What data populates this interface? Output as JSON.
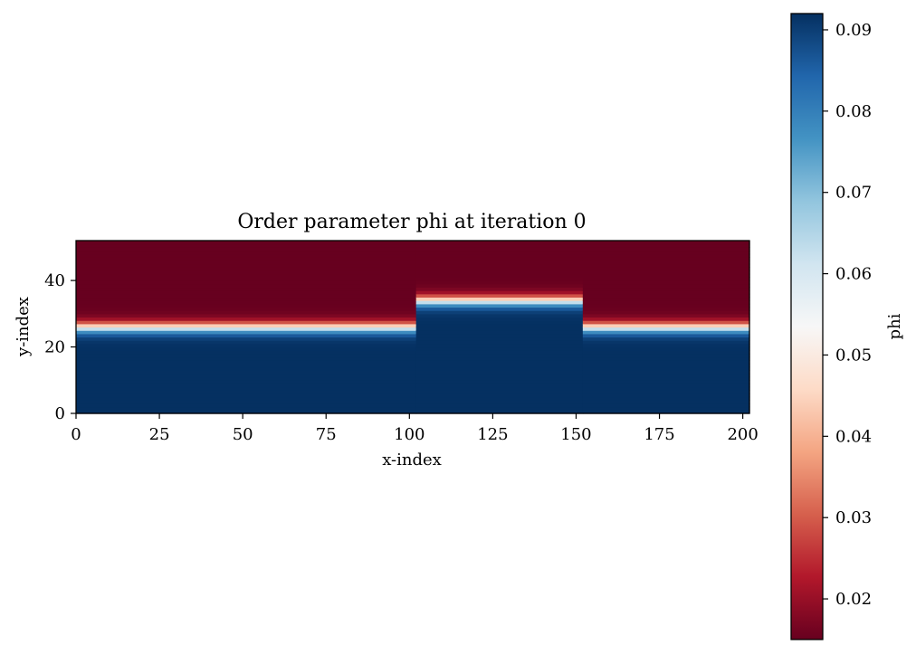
{
  "chart_data": {
    "type": "heatmap",
    "title": "Order parameter phi at iteration 0",
    "xlabel": "x-index",
    "ylabel": "y-index",
    "xlim": [
      0,
      202
    ],
    "ylim": [
      0,
      52
    ],
    "xticks": [
      0,
      25,
      50,
      75,
      100,
      125,
      150,
      175,
      200
    ],
    "yticks": [
      0,
      20,
      40
    ],
    "colormap": "RdBu",
    "colorbar": {
      "label": "phi",
      "range": [
        0.015,
        0.092
      ],
      "ticks": [
        0.02,
        0.03,
        0.04,
        0.05,
        0.06,
        0.07,
        0.08,
        0.09
      ],
      "tick_labels": [
        "0.02",
        "0.03",
        "0.04",
        "0.05",
        "0.06",
        "0.07",
        "0.08",
        "0.09"
      ]
    },
    "phi_low": 0.015,
    "phi_high": 0.092,
    "interface_width": 2,
    "regions": [
      {
        "x_start": 0,
        "x_end": 102,
        "interface_y": 26
      },
      {
        "x_start": 102,
        "x_end": 152,
        "interface_y": 34
      },
      {
        "x_start": 152,
        "x_end": 202,
        "interface_y": 26
      }
    ]
  },
  "colors": {
    "cmap_stops": [
      "#67001f",
      "#b2182b",
      "#d6604d",
      "#f4a582",
      "#fddbc7",
      "#f7f7f7",
      "#d1e5f0",
      "#92c5de",
      "#4393c3",
      "#2166ac",
      "#053061"
    ],
    "frame": "#000000"
  }
}
